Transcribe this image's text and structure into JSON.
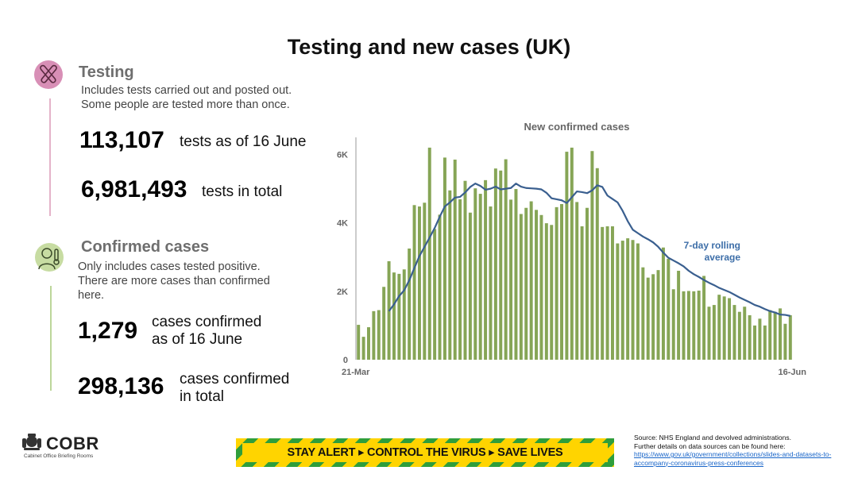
{
  "title": "Testing and new cases (UK)",
  "testing": {
    "heading": "Testing",
    "desc_1": "Includes tests carried out and posted out.",
    "desc_2": "Some people are tested more than once.",
    "stat_1_value": "113,107",
    "stat_1_label": "tests as of 16 June",
    "stat_2_value": "6,981,493",
    "stat_2_label": "tests in total",
    "icon": "test-tubes-icon"
  },
  "cases": {
    "heading": "Confirmed cases",
    "desc_1": "Only includes cases tested positive.",
    "desc_2": "There are more cases than confirmed",
    "desc_3": "here.",
    "stat_1_value": "1,279",
    "stat_1_label_1": "cases confirmed",
    "stat_1_label_2": "as of 16 June",
    "stat_2_value": "298,136",
    "stat_2_label_1": "cases confirmed",
    "stat_2_label_2": "in total",
    "icon": "thermometer-person-icon"
  },
  "footer": {
    "logo_text": "COBR",
    "logo_subtext": "Cabinet Office Briefing Rooms",
    "banner_text": "STAY ALERT ▸ CONTROL THE VIRUS ▸ SAVE LIVES",
    "source_1": "Source: NHS England and devolved administrations.",
    "source_2": "Further details on data sources can be found here:",
    "source_link_1": "https://www.gov.uk/government/collections/slides-and-datasets-to-",
    "source_link_2": "accompany-coronavirus-press-conferences"
  },
  "colors": {
    "bar": "#86a556",
    "line": "#3a5f8f",
    "annotation": "#3d6ea8",
    "testing_accent": "#d88fb6",
    "cases_accent": "#c7dca2"
  },
  "chart_data": {
    "type": "bar",
    "title": "New confirmed cases",
    "x_start_label": "21-Mar",
    "x_end_label": "16-Jun",
    "ylim": [
      0,
      6500
    ],
    "yticks": [
      0,
      2000,
      4000,
      6000
    ],
    "ytick_labels": [
      "0",
      "2K",
      "4K",
      "6K"
    ],
    "grid": false,
    "annotation": {
      "line_1": "7-day rolling",
      "line_2": "average"
    },
    "series": [
      {
        "type": "bar",
        "values": [
          1020,
          670,
          950,
          1420,
          1450,
          2130,
          2880,
          2550,
          2510,
          2640,
          3250,
          4520,
          4480,
          4590,
          6200,
          3820,
          4240,
          5910,
          4950,
          5850,
          4690,
          5230,
          4300,
          5010,
          4850,
          5250,
          4480,
          5590,
          5530,
          5860,
          4680,
          4990,
          4260,
          4440,
          4630,
          4380,
          4230,
          3990,
          3940,
          4460,
          4550,
          6080,
          6200,
          4610,
          3900,
          4440,
          6100,
          5600,
          3880,
          3900,
          3900,
          3400,
          3480,
          3550,
          3500,
          3400,
          2700,
          2400,
          2500,
          2620,
          3280,
          2950,
          2060,
          2600,
          2000,
          2010,
          2000,
          2020,
          2450,
          1550,
          1600,
          1900,
          1850,
          1800,
          1600,
          1400,
          1550,
          1300,
          1000,
          1200,
          1000,
          1450,
          1400,
          1500,
          1050,
          1300
        ]
      },
      {
        "type": "line",
        "name": "7-day rolling average",
        "values": [
          null,
          null,
          null,
          null,
          null,
          null,
          1420,
          1620,
          1860,
          2030,
          2320,
          2680,
          3030,
          3300,
          3570,
          3850,
          4180,
          4480,
          4600,
          4740,
          4760,
          4890,
          5050,
          5150,
          5080,
          4970,
          5000,
          5060,
          4980,
          5000,
          5020,
          5150,
          5060,
          5020,
          5010,
          5000,
          4980,
          4880,
          4720,
          4690,
          4660,
          4580,
          4750,
          4920,
          4900,
          4870,
          4950,
          5100,
          5050,
          4800,
          4700,
          4600,
          4350,
          4050,
          3800,
          3700,
          3600,
          3520,
          3430,
          3300,
          3130,
          2980,
          2900,
          2820,
          2730,
          2600,
          2500,
          2420,
          2330,
          2250,
          2180,
          2100,
          2040,
          1980,
          1900,
          1820,
          1750,
          1680,
          1600,
          1550,
          1480,
          1420,
          1380,
          1320,
          1310,
          1280
        ]
      }
    ]
  }
}
